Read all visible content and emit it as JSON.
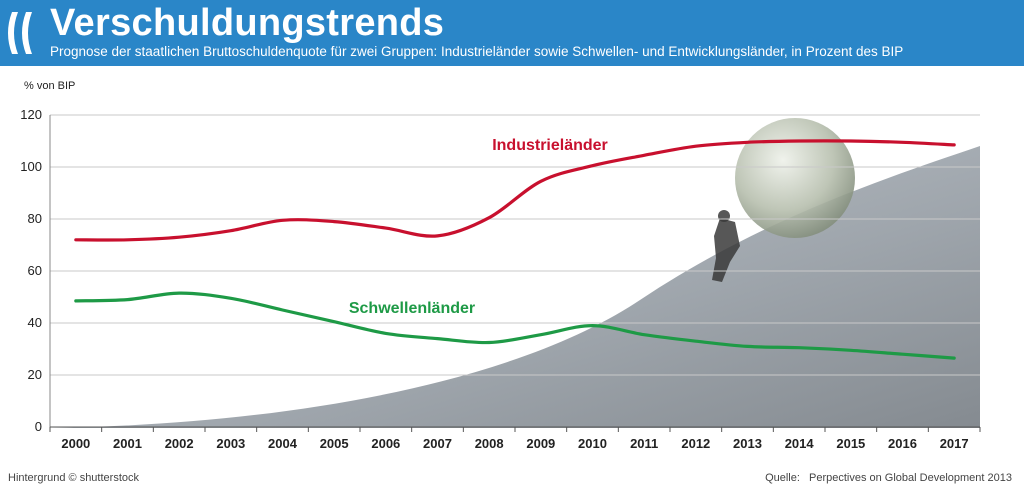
{
  "header": {
    "title": "Verschuldungstrends",
    "subtitle": "Prognose der staatlichen Bruttoschuldenquote für zwei Gruppen: Industrieländer sowie Schwellen- und Entwicklungsländer, in Prozent des BIP",
    "logo_icon": "oecd-logo-icon",
    "background_color": "#2a86c8"
  },
  "footer": {
    "credit": "Hintergrund © shutterstock",
    "source_label": "Quelle:",
    "source_text": "Perpectives on Global Development 2013"
  },
  "chart_data": {
    "type": "line",
    "title": "Verschuldungstrends",
    "ylabel": "% von BIP",
    "xlabel": "",
    "ylim": [
      0,
      120
    ],
    "yticks": [
      0,
      20,
      40,
      60,
      80,
      100,
      120
    ],
    "grid": true,
    "legend": "inline labels",
    "categories": [
      "2000",
      "2001",
      "2002",
      "2003",
      "2004",
      "2005",
      "2006",
      "2007",
      "2008",
      "2009",
      "2010",
      "2011",
      "2012",
      "2013",
      "2014",
      "2015",
      "2016",
      "2017"
    ],
    "series": [
      {
        "name": "Industrieländer",
        "color": "#c8102e",
        "values": [
          72,
          72,
          73,
          75.5,
          79.5,
          79,
          76.5,
          73.5,
          80.5,
          94.5,
          100.5,
          104.5,
          108,
          109.5,
          110,
          110,
          109.5,
          108.5
        ]
      },
      {
        "name": "Schwellenländer",
        "color": "#1e9a46",
        "values": [
          48.5,
          49,
          51.5,
          49.5,
          45,
          40.5,
          36,
          34,
          32.5,
          35.5,
          39,
          35.5,
          33,
          31,
          30.5,
          29.5,
          28,
          26.5
        ]
      }
    ],
    "background_image": "sisyphus-hill-money-ball-illustration"
  }
}
